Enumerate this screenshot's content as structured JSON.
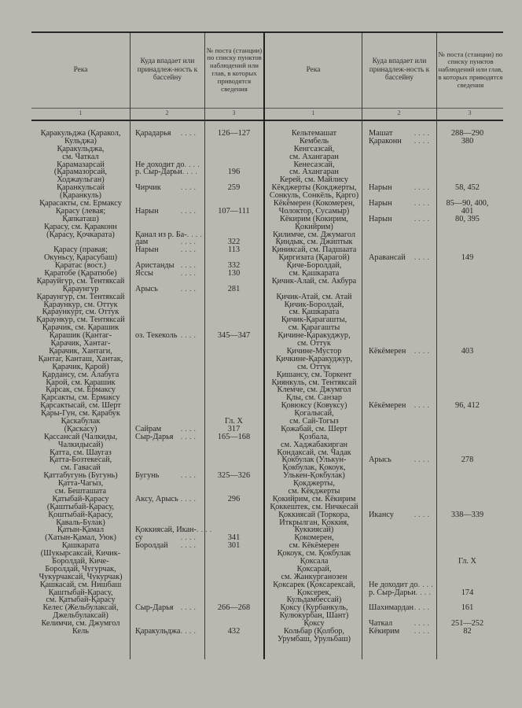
{
  "header": {
    "river": "Река",
    "basin": "Куда впадает или принадлеж-ность к бассейну",
    "post": "№ поста (станции) по списку пунктов наблюдений или глав, в которых приводятся сведения",
    "col_numbers": [
      "1",
      "2",
      "3"
    ]
  },
  "left": [
    {
      "river": [
        "Қаракульджа (Қаракол,",
        "Кульджа)"
      ],
      "basin": [
        "Қарадарья"
      ],
      "post": [
        "126—127"
      ]
    },
    {
      "river": [
        "Қаракульджа,",
        "см. Чаткал"
      ],
      "basin": [],
      "post": []
    },
    {
      "river": [
        "Қарамазарсай",
        "(Қарамазорсай,",
        "Ходжаульган)"
      ],
      "basin": [
        "Не доходит до",
        "р. Сыр-Дарьи"
      ],
      "post": [
        "",
        "196"
      ]
    },
    {
      "river": [
        "Қаранкульсай",
        "(Қаранкуль)"
      ],
      "basin": [
        "Чирчик"
      ],
      "post": [
        "259"
      ]
    },
    {
      "river": [
        "Қарасакты, см. Ермаксу"
      ],
      "basin": [],
      "post": []
    },
    {
      "river": [
        "Қарасу (левая;",
        "Қапкаташ)"
      ],
      "basin": [
        "Нарын"
      ],
      "post": [
        "107—111"
      ]
    },
    {
      "river": [
        "Қарасу, см. Қараконн",
        "(Қарасу, Қочкарата)",
        ""
      ],
      "basin": [
        "",
        "Қанал из р. Ба-",
        "дам"
      ],
      "post": [
        "",
        "",
        "322"
      ]
    },
    {
      "river": [
        "Қарасу (правая;",
        "Окуньсу, Қарасубаш)"
      ],
      "basin": [
        "Нарын"
      ],
      "post": [
        "113"
      ]
    },
    {
      "river": [
        "Қаратас (вост.)"
      ],
      "basin": [
        "Аристанды"
      ],
      "post": [
        "332"
      ]
    },
    {
      "river": [
        "Қаратобе (Қаратюбе)"
      ],
      "basin": [
        "Яссы"
      ],
      "post": [
        "130"
      ]
    },
    {
      "river": [
        "Қарауйгур, см. Тентяксай"
      ],
      "basin": [],
      "post": []
    },
    {
      "river": [
        "Қараунгур"
      ],
      "basin": [
        "Арысь"
      ],
      "post": [
        "281"
      ]
    },
    {
      "river": [
        "Қараунгур, см. Тентяксай"
      ],
      "basin": [],
      "post": []
    },
    {
      "river": [
        "Қараункур, см. Оттук"
      ],
      "basin": [],
      "post": []
    },
    {
      "river": [
        "Қараункурт, см. Оттук"
      ],
      "basin": [],
      "post": []
    },
    {
      "river": [
        "Қараункур, см. Тентяксай"
      ],
      "basin": [],
      "post": []
    },
    {
      "river": [
        "Қарачик, см. Қарашик"
      ],
      "basin": [],
      "post": []
    },
    {
      "river": [
        "Қарашик (Қантаг-",
        "Қарачик, Хантаг-",
        "Қарачик, Хантаги,",
        "Қантаг, Канташ, Хантак,",
        "Қарачик, Қарой)"
      ],
      "basin": [
        "оз. Текеколь"
      ],
      "post": [
        "345—347"
      ]
    },
    {
      "river": [
        "Қардансу, см. Алабуга"
      ],
      "basin": [],
      "post": []
    },
    {
      "river": [
        "Қарой, см. Қарашик"
      ],
      "basin": [],
      "post": []
    },
    {
      "river": [
        "Қарсак, см. Ермаксу"
      ],
      "basin": [],
      "post": []
    },
    {
      "river": [
        "Қарсакты, см. Ермаксу"
      ],
      "basin": [],
      "post": []
    },
    {
      "river": [
        "Қарсактысай, см. Шерт"
      ],
      "basin": [],
      "post": []
    },
    {
      "river": [
        "Қары-Гун, см. Қарабук"
      ],
      "basin": [],
      "post": []
    },
    {
      "river": [
        "Қаскабулак",
        "(Қаскасу)"
      ],
      "basin": [
        "",
        "Сайрам"
      ],
      "post": [
        "Гл. X",
        "317"
      ]
    },
    {
      "river": [
        "Қассансай (Чалкиды,",
        "Чалкидысай)"
      ],
      "basin": [
        "Сыр-Дарья"
      ],
      "post": [
        "165—168"
      ]
    },
    {
      "river": [
        "Қатта, см. Шаугаз"
      ],
      "basin": [],
      "post": []
    },
    {
      "river": [
        "Қатта-Бозтекесай,",
        "см. Гавасай"
      ],
      "basin": [],
      "post": []
    },
    {
      "river": [
        "Қаттабугунь (Бугунь)"
      ],
      "basin": [
        "Бугунь"
      ],
      "post": [
        "325—326"
      ]
    },
    {
      "river": [
        "Қатта-Чагыз,",
        "см. Бешташата"
      ],
      "basin": [],
      "post": []
    },
    {
      "river": [
        "Қатыбай-Қарасу",
        "(Қаштыбай-Қарасу,",
        "Қоштыбай-Қарасу,",
        "Қаваль-Булак)"
      ],
      "basin": [
        "Аксу, Арысь"
      ],
      "post": [
        "296"
      ]
    },
    {
      "river": [
        "Қатын-Қамал",
        "(Хатын-Қамал, Уюк)"
      ],
      "basin": [
        "Қоккиясай, Икан-",
        "су"
      ],
      "post": [
        "",
        "341"
      ]
    },
    {
      "river": [
        "Қашкарата",
        "(Шукырсаксай, Кичик-",
        "Боролдай, Киче-",
        "Боролдай, Чугурчак,",
        "Чукурчаксай, Чукурчак)"
      ],
      "basin": [
        "Боролдай"
      ],
      "post": [
        "301"
      ]
    },
    {
      "river": [
        "Қашкасай, см. Нишбаш"
      ],
      "basin": [],
      "post": []
    },
    {
      "river": [
        "Қаштыбай-Қарасу,",
        "см. Қатыбай-Қарасу"
      ],
      "basin": [],
      "post": []
    },
    {
      "river": [
        "Келес (Жельбулаксай,",
        "Джельбулаксай)"
      ],
      "basin": [
        "Сыр-Дарья"
      ],
      "post": [
        "266—268"
      ]
    },
    {
      "river": [
        "Келимчи, см. Джумгол"
      ],
      "basin": [],
      "post": []
    },
    {
      "river": [
        "Кель"
      ],
      "basin": [
        "Қаракульджа"
      ],
      "post": [
        "432"
      ]
    }
  ],
  "right": [
    {
      "river": [
        "Кельтемашат"
      ],
      "basin": [
        "Машат"
      ],
      "post": [
        "288—290"
      ]
    },
    {
      "river": [
        "Кембель"
      ],
      "basin": [
        "Қараконн"
      ],
      "post": [
        "380"
      ]
    },
    {
      "river": [
        "Кенгсазсай,",
        "см. Ахангаран"
      ],
      "basin": [],
      "post": []
    },
    {
      "river": [
        "Кенесазсай,",
        "см. Ахангаран"
      ],
      "basin": [],
      "post": []
    },
    {
      "river": [
        "Керей, см. Майлису"
      ],
      "basin": [],
      "post": []
    },
    {
      "river": [
        "Кёкджерты (Кокджерты,",
        "Сонкуль, Сонкёль, Қарго)"
      ],
      "basin": [
        "Нарын"
      ],
      "post": [
        "58, 452"
      ]
    },
    {
      "river": [
        "Кёкёмерен (Кокомерен,",
        "Чолоктор, Сусамыр)"
      ],
      "basin": [
        "Нарын"
      ],
      "post": [
        "85—90, 400,",
        "401"
      ]
    },
    {
      "river": [
        "Кёкирим (Кокирим,",
        "Қокийрим)"
      ],
      "basin": [
        "Нарын"
      ],
      "post": [
        "80, 395"
      ]
    },
    {
      "river": [
        "Қилимче, см. Джумагол"
      ],
      "basin": [],
      "post": []
    },
    {
      "river": [
        "Қиндык, см. Джиптык"
      ],
      "basin": [],
      "post": []
    },
    {
      "river": [
        "Қиниксай, см. Падшаата"
      ],
      "basin": [],
      "post": []
    },
    {
      "river": [
        "Қиргизата (Қарагой)"
      ],
      "basin": [
        "Аравансай"
      ],
      "post": [
        "149"
      ]
    },
    {
      "river": [
        "Қиче-Боролдай,",
        "см. Қашкарата"
      ],
      "basin": [],
      "post": []
    },
    {
      "river": [
        "Қичик-Алай, см. Акбура",
        ""
      ],
      "basin": [],
      "post": []
    },
    {
      "river": [
        "Қичик-Атай, см. Атай"
      ],
      "basin": [],
      "post": []
    },
    {
      "river": [
        "Қичик-Боролдай,",
        "см. Қашкарата"
      ],
      "basin": [],
      "post": []
    },
    {
      "river": [
        "Қичик-Қарагашты,",
        "см. Қарагашты"
      ],
      "basin": [],
      "post": []
    },
    {
      "river": [
        "Қичине-Қаракуджур,",
        "см. Оттук"
      ],
      "basin": [],
      "post": []
    },
    {
      "river": [
        "Қичине-Мустор"
      ],
      "basin": [
        "Кёкёмерен"
      ],
      "post": [
        "403"
      ]
    },
    {
      "river": [
        "Қичкине-Қаракуджур,",
        "см. Оттук"
      ],
      "basin": [],
      "post": []
    },
    {
      "river": [
        "Қишансу, см. Торкент"
      ],
      "basin": [],
      "post": []
    },
    {
      "river": [
        "Қиянкуль, см. Тентяксай"
      ],
      "basin": [],
      "post": []
    },
    {
      "river": [
        "Клемче, см. Джумгол"
      ],
      "basin": [],
      "post": []
    },
    {
      "river": [
        "Қлы, см. Санзар"
      ],
      "basin": [],
      "post": []
    },
    {
      "river": [
        "Қовюксу (Ковуксу)"
      ],
      "basin": [
        "Кёкёмерен"
      ],
      "post": [
        "96, 412"
      ]
    },
    {
      "river": [
        "Қогалысай,",
        "см. Сай-Тогыз"
      ],
      "basin": [],
      "post": []
    },
    {
      "river": [
        "Қожабай, см. Шерт"
      ],
      "basin": [],
      "post": []
    },
    {
      "river": [
        "Қозбала,",
        "см. Хаджабакирган"
      ],
      "basin": [],
      "post": []
    },
    {
      "river": [
        "Қондаксай, см. Чадак"
      ],
      "basin": [],
      "post": []
    },
    {
      "river": [
        "Қокбулак (Улькун-",
        "Қокбулак, Қокоук,",
        "Улькен-Қокбулак)"
      ],
      "basin": [
        "Арысь"
      ],
      "post": [
        "278"
      ]
    },
    {
      "river": [
        "Қокджерты,",
        "см. Кёкджерты"
      ],
      "basin": [],
      "post": []
    },
    {
      "river": [
        "Қокийрим, см. Кёкирим"
      ],
      "basin": [],
      "post": []
    },
    {
      "river": [
        "Қоккештек, см. Ничкесай"
      ],
      "basin": [],
      "post": []
    },
    {
      "river": [
        "Қоккиясай (Торкора,",
        "Иткрылган, Қоккия,",
        "Куккиясай)"
      ],
      "basin": [
        "Икансу"
      ],
      "post": [
        "338—339"
      ]
    },
    {
      "river": [
        "Қокомерен,",
        "см. Кёкёмерен"
      ],
      "basin": [],
      "post": []
    },
    {
      "river": [
        "Қокоук, см. Қокбулак"
      ],
      "basin": [],
      "post": []
    },
    {
      "river": [
        "Қоксала"
      ],
      "basin": [],
      "post": [
        "Гл. X"
      ]
    },
    {
      "river": [
        "Қоксарай,",
        "см. Жанкурганозен"
      ],
      "basin": [],
      "post": []
    },
    {
      "river": [
        "Қоксарек (Қоксарексай,",
        "Қоксерек,",
        "Кульдамбессай)"
      ],
      "basin": [
        "Не доходит до",
        "р. Сыр-Дарьи"
      ],
      "post": [
        "",
        "174"
      ]
    },
    {
      "river": [
        "Қоксу (Курбанкуль,",
        "Кулюкурбан, Шант)"
      ],
      "basin": [
        "Шахимардан"
      ],
      "post": [
        "161"
      ]
    },
    {
      "river": [
        "Қоксу"
      ],
      "basin": [
        "Чаткал"
      ],
      "post": [
        "251—252"
      ]
    },
    {
      "river": [
        "Кольбар (Қолбор,",
        "Урумбаш, Урульбаш)"
      ],
      "basin": [
        "Кёкирим"
      ],
      "post": [
        "82"
      ]
    }
  ]
}
